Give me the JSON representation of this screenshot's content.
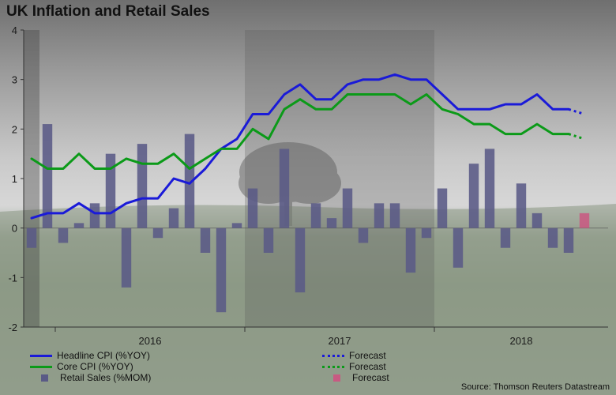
{
  "title": "UK Inflation and Retail Sales",
  "source": "Source: Thomson Reuters Datastream",
  "colors": {
    "headline": "#1a1ad8",
    "core": "#0b9a18",
    "retail": "#5a5a86",
    "retail_forecast": "#c85a82"
  },
  "chart_data": {
    "type": "bar",
    "title": "UK Inflation and Retail Sales",
    "xlabel": "",
    "ylabel": "",
    "ylim": [
      -2,
      4
    ],
    "yticks": [
      "4",
      "3",
      "2",
      "1",
      "0",
      "-1",
      "-2"
    ],
    "grid": false,
    "legend_position": "bottom",
    "year_labels": [
      "2016",
      "2017",
      "2018"
    ],
    "x": [
      "2015-11",
      "2015-12",
      "2016-01",
      "2016-02",
      "2016-03",
      "2016-04",
      "2016-05",
      "2016-06",
      "2016-07",
      "2016-08",
      "2016-09",
      "2016-10",
      "2016-11",
      "2016-12",
      "2017-01",
      "2017-02",
      "2017-03",
      "2017-04",
      "2017-05",
      "2017-06",
      "2017-07",
      "2017-08",
      "2017-09",
      "2017-10",
      "2017-11",
      "2017-12",
      "2018-01",
      "2018-02",
      "2018-03",
      "2018-04",
      "2018-05",
      "2018-06",
      "2018-07",
      "2018-08",
      "2018-09",
      "2018-10",
      "2018-11"
    ],
    "series": [
      {
        "name": "Headline CPI (%YOY)",
        "kind": "line",
        "values": [
          0.2,
          0.3,
          0.3,
          0.5,
          0.3,
          0.3,
          0.5,
          0.6,
          0.6,
          1.0,
          0.9,
          1.2,
          1.6,
          1.8,
          2.3,
          2.3,
          2.7,
          2.9,
          2.6,
          2.6,
          2.9,
          3.0,
          3.0,
          3.1,
          3.0,
          3.0,
          2.7,
          2.4,
          2.4,
          2.4,
          2.5,
          2.5,
          2.7,
          2.4,
          2.4,
          null,
          null
        ]
      },
      {
        "name": "Forecast",
        "kind": "line-forecast",
        "values": [
          null,
          null,
          null,
          null,
          null,
          null,
          null,
          null,
          null,
          null,
          null,
          null,
          null,
          null,
          null,
          null,
          null,
          null,
          null,
          null,
          null,
          null,
          null,
          null,
          null,
          null,
          null,
          null,
          null,
          null,
          null,
          null,
          null,
          null,
          2.4,
          2.3,
          null
        ]
      },
      {
        "name": "Core CPI (%YOY)",
        "kind": "line",
        "values": [
          1.4,
          1.2,
          1.2,
          1.5,
          1.2,
          1.2,
          1.4,
          1.3,
          1.3,
          1.5,
          1.2,
          1.4,
          1.6,
          1.6,
          2.0,
          1.8,
          2.4,
          2.6,
          2.4,
          2.4,
          2.7,
          2.7,
          2.7,
          2.7,
          2.5,
          2.7,
          2.4,
          2.3,
          2.1,
          2.1,
          1.9,
          1.9,
          2.1,
          1.9,
          1.9,
          null,
          null
        ]
      },
      {
        "name": "Forecast",
        "kind": "line-forecast",
        "values": [
          null,
          null,
          null,
          null,
          null,
          null,
          null,
          null,
          null,
          null,
          null,
          null,
          null,
          null,
          null,
          null,
          null,
          null,
          null,
          null,
          null,
          null,
          null,
          null,
          null,
          null,
          null,
          null,
          null,
          null,
          null,
          null,
          null,
          null,
          1.9,
          1.8,
          null
        ]
      },
      {
        "name": "Retail Sales (%MOM)",
        "kind": "bar",
        "values": [
          -0.4,
          2.1,
          -0.3,
          0.1,
          0.5,
          1.5,
          -1.2,
          1.7,
          -0.2,
          0.4,
          1.9,
          -0.5,
          -1.7,
          0.1,
          0.8,
          -0.5,
          1.6,
          -1.3,
          0.5,
          0.2,
          0.8,
          -0.3,
          0.5,
          0.5,
          -0.9,
          -0.2,
          0.8,
          -0.8,
          1.3,
          1.6,
          -0.4,
          0.9,
          0.3,
          -0.4,
          -0.5,
          null,
          null
        ]
      },
      {
        "name": "Forecast",
        "kind": "bar-forecast",
        "values": [
          null,
          null,
          null,
          null,
          null,
          null,
          null,
          null,
          null,
          null,
          null,
          null,
          null,
          null,
          null,
          null,
          null,
          null,
          null,
          null,
          null,
          null,
          null,
          null,
          null,
          null,
          null,
          null,
          null,
          null,
          null,
          null,
          null,
          null,
          null,
          0.3,
          null
        ]
      }
    ]
  },
  "legend": [
    {
      "label": "Headline CPI (%YOY)",
      "style": "line",
      "color": "#1a1ad8"
    },
    {
      "label": "Core CPI (%YOY)",
      "style": "line",
      "color": "#0b9a18"
    },
    {
      "label": "Retail Sales (%MOM)",
      "style": "box",
      "color": "#5a5a86"
    },
    {
      "label": "Forecast",
      "style": "dash",
      "color": "#1a1ad8"
    },
    {
      "label": "Forecast",
      "style": "dash",
      "color": "#0b9a18"
    },
    {
      "label": "Forecast",
      "style": "box",
      "color": "#c85a82"
    }
  ]
}
